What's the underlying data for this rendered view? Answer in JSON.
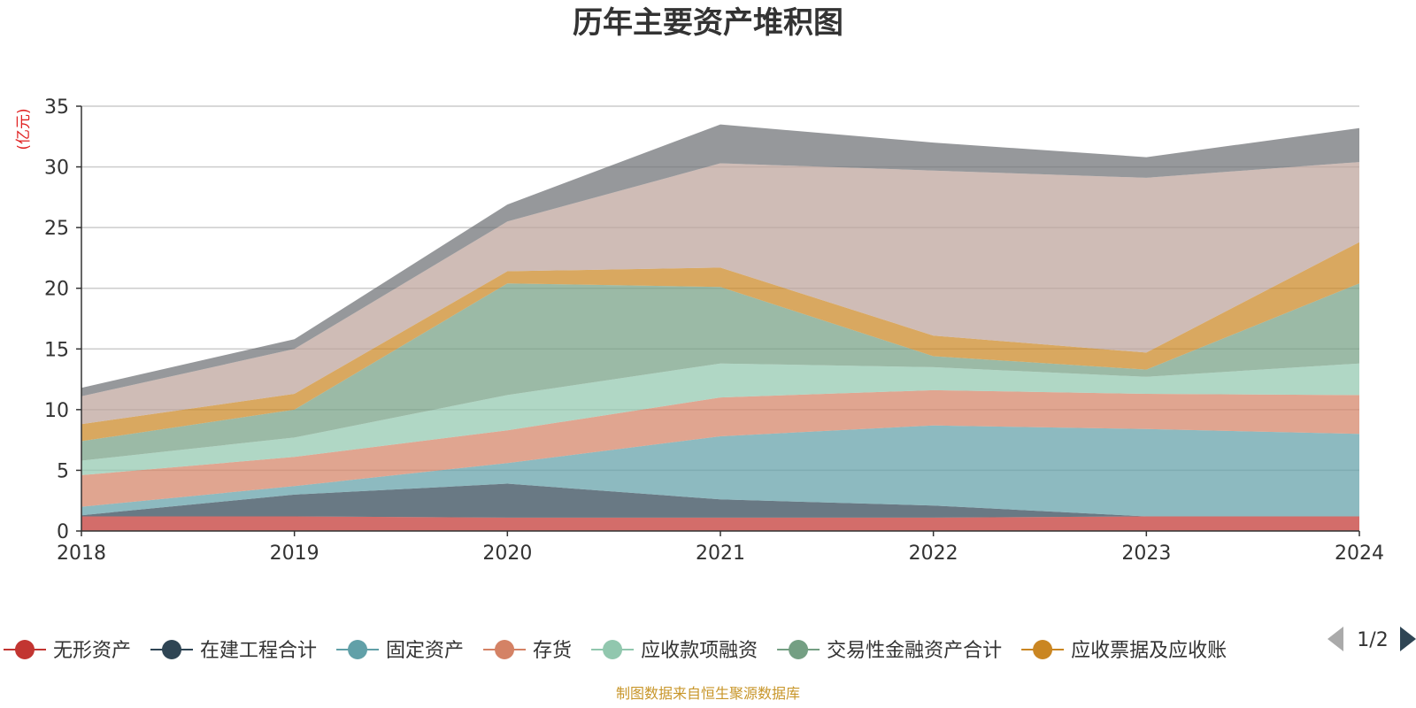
{
  "chart_data": {
    "type": "area",
    "stacked": true,
    "title": "历年主要资产堆积图",
    "unit_label": "(亿元)",
    "x": [
      "2018",
      "2019",
      "2020",
      "2021",
      "2022",
      "2023",
      "2024"
    ],
    "ylim": [
      0,
      35
    ],
    "yticks": [
      "0",
      "5",
      "10",
      "15",
      "20",
      "25",
      "30",
      "35"
    ],
    "grid": true,
    "legend_position": "bottom",
    "legend_page": "1/2",
    "series": [
      {
        "name": "无形资产",
        "color": "#c23531",
        "values": [
          1.2,
          1.2,
          1.1,
          1.1,
          1.1,
          1.2,
          1.2
        ]
      },
      {
        "name": "在建工程合计",
        "color": "#2f4554",
        "values": [
          0.1,
          1.8,
          2.8,
          1.5,
          1.0,
          0.0,
          0.0
        ]
      },
      {
        "name": "固定资产",
        "color": "#61a0a8",
        "values": [
          0.7,
          0.7,
          1.7,
          5.2,
          6.6,
          7.2,
          6.8
        ]
      },
      {
        "name": "存货",
        "color": "#d48265",
        "values": [
          2.6,
          2.4,
          2.7,
          3.2,
          2.9,
          2.9,
          3.2
        ]
      },
      {
        "name": "应收款项融资",
        "color": "#91c7ae",
        "values": [
          1.2,
          1.6,
          2.9,
          2.8,
          1.9,
          1.4,
          2.6
        ]
      },
      {
        "name": "交易性金融资产合计",
        "color": "#749f83",
        "values": [
          1.6,
          2.3,
          9.2,
          6.3,
          0.9,
          0.6,
          6.6
        ]
      },
      {
        "name": "应收票据及应收账",
        "color": "#ca8622",
        "values": [
          1.4,
          1.3,
          1.0,
          1.6,
          1.7,
          1.4,
          3.4
        ]
      },
      {
        "color": "#bda29a",
        "values": [
          2.3,
          3.7,
          4.1,
          8.6,
          13.6,
          14.4,
          6.6
        ]
      },
      {
        "color": "#6e7074",
        "values": [
          0.7,
          0.8,
          1.4,
          3.2,
          2.3,
          1.7,
          2.8
        ]
      }
    ],
    "source_note": "制图数据来自恒生聚源数据库"
  }
}
